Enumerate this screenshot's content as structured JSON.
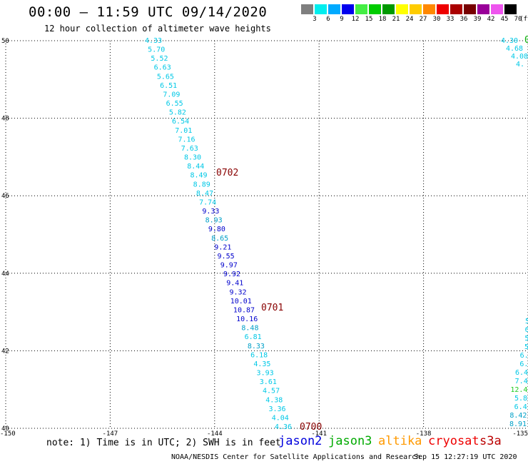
{
  "title": "00:00 – 11:59 UTC 09/14/2020",
  "subtitle": "12 hour collection of altimeter wave heights",
  "legend": {
    "unit_label": "(ft)",
    "bins": [
      {
        "label": "3",
        "color": "#7f7f7f"
      },
      {
        "label": "6",
        "color": "#00eeee"
      },
      {
        "label": "9",
        "color": "#00aaff"
      },
      {
        "label": "12",
        "color": "#0000ee"
      },
      {
        "label": "15",
        "color": "#44ee44"
      },
      {
        "label": "18",
        "color": "#00cc00"
      },
      {
        "label": "21",
        "color": "#009900"
      },
      {
        "label": "24",
        "color": "#ffff00"
      },
      {
        "label": "27",
        "color": "#ffcc00"
      },
      {
        "label": "30",
        "color": "#ff8800"
      },
      {
        "label": "33",
        "color": "#ee0000"
      },
      {
        "label": "36",
        "color": "#aa0000"
      },
      {
        "label": "39",
        "color": "#770000"
      },
      {
        "label": "42",
        "color": "#990099"
      },
      {
        "label": "45",
        "color": "#ee55ee"
      },
      {
        "label": "70",
        "color": "#000000"
      }
    ]
  },
  "map": {
    "lon_range": [
      -150,
      -135
    ],
    "lat_range": [
      40,
      50
    ],
    "lon_ticks": [
      "-150",
      "-147",
      "-144",
      "-141",
      "-138",
      "-135"
    ],
    "lat_ticks": [
      "40",
      "42",
      "44",
      "46",
      "48",
      "50"
    ]
  },
  "track_colors": {
    "cyan": "#00c8e6",
    "blue": "#0000cc",
    "teal": "#00a0c8",
    "green": "#22cc22"
  },
  "track_main": [
    {
      "v": "4.33",
      "c": "cyan"
    },
    {
      "v": "5.70",
      "c": "cyan"
    },
    {
      "v": "5.52",
      "c": "cyan"
    },
    {
      "v": "6.63",
      "c": "cyan"
    },
    {
      "v": "5.65",
      "c": "cyan"
    },
    {
      "v": "6.51",
      "c": "cyan"
    },
    {
      "v": "7.09",
      "c": "cyan"
    },
    {
      "v": "6.55",
      "c": "cyan"
    },
    {
      "v": "5.82",
      "c": "cyan"
    },
    {
      "v": "6.54",
      "c": "cyan"
    },
    {
      "v": "7.01",
      "c": "cyan"
    },
    {
      "v": "7.16",
      "c": "cyan"
    },
    {
      "v": "7.63",
      "c": "cyan"
    },
    {
      "v": "8.30",
      "c": "cyan"
    },
    {
      "v": "8.44",
      "c": "cyan"
    },
    {
      "v": "8.49",
      "c": "cyan"
    },
    {
      "v": "8.89",
      "c": "cyan"
    },
    {
      "v": "8.47",
      "c": "cyan"
    },
    {
      "v": "7.74",
      "c": "cyan"
    },
    {
      "v": "9.33",
      "c": "blue"
    },
    {
      "v": "8.93",
      "c": "teal"
    },
    {
      "v": "9.80",
      "c": "blue"
    },
    {
      "v": "8.65",
      "c": "teal"
    },
    {
      "v": "9.21",
      "c": "blue"
    },
    {
      "v": "9.55",
      "c": "blue"
    },
    {
      "v": "9.97",
      "c": "blue"
    },
    {
      "v": "9.92",
      "c": "blue"
    },
    {
      "v": "9.41",
      "c": "blue"
    },
    {
      "v": "9.32",
      "c": "blue"
    },
    {
      "v": "10.01",
      "c": "blue"
    },
    {
      "v": "10.87",
      "c": "blue"
    },
    {
      "v": "10.16",
      "c": "blue"
    },
    {
      "v": "8.48",
      "c": "teal"
    },
    {
      "v": "6.81",
      "c": "cyan"
    },
    {
      "v": "8.33",
      "c": "teal"
    },
    {
      "v": "6.18",
      "c": "cyan"
    },
    {
      "v": "4.35",
      "c": "cyan"
    },
    {
      "v": "3.93",
      "c": "cyan"
    },
    {
      "v": "3.61",
      "c": "cyan"
    },
    {
      "v": "4.57",
      "c": "cyan"
    },
    {
      "v": "4.38",
      "c": "cyan"
    },
    {
      "v": "3.36",
      "c": "cyan"
    },
    {
      "v": "4.04",
      "c": "cyan"
    },
    {
      "v": "4.36",
      "c": "cyan"
    }
  ],
  "track_top_right": [
    {
      "v": "4.30",
      "c": "cyan"
    },
    {
      "v": "4.68",
      "c": "cyan"
    },
    {
      "v": "4.08",
      "c": "cyan"
    },
    {
      "v": "4.",
      "c": "cyan"
    }
  ],
  "track_bottom_right": [
    {
      "v": "5",
      "c": "cyan"
    },
    {
      "v": "6",
      "c": "cyan"
    },
    {
      "v": "5",
      "c": "cyan"
    },
    {
      "v": "5",
      "c": "cyan"
    },
    {
      "v": "6.",
      "c": "cyan"
    },
    {
      "v": "6.",
      "c": "cyan"
    },
    {
      "v": "6.4",
      "c": "cyan"
    },
    {
      "v": "7.4",
      "c": "cyan"
    },
    {
      "v": "12.4",
      "c": "green"
    },
    {
      "v": "5.8",
      "c": "cyan"
    },
    {
      "v": "6.4",
      "c": "cyan"
    },
    {
      "v": "8.42",
      "c": "teal"
    },
    {
      "v": "8.91",
      "c": "teal"
    }
  ],
  "time_labels": [
    {
      "text": "0702",
      "color": "#880000"
    },
    {
      "text": "0701",
      "color": "#880000"
    },
    {
      "text": "0700",
      "color": "#880000"
    },
    {
      "text": "0",
      "color": "#00aa00"
    }
  ],
  "note": "note: 1) Time is in UTC; 2) SWH is in feet",
  "satellites": [
    {
      "name": "jason2",
      "color": "#0000dd"
    },
    {
      "name": "jason3",
      "color": "#00aa00"
    },
    {
      "name": "altika",
      "color": "#ff9900"
    },
    {
      "name": "cryosat",
      "color": "#ee0000"
    },
    {
      "name": "s3a",
      "color": "#bb0000"
    }
  ],
  "footer": "NOAA/NESDIS Center for Satellite Applications and Research",
  "footer_time": "Sep 15 12:27:19 UTC 2020"
}
